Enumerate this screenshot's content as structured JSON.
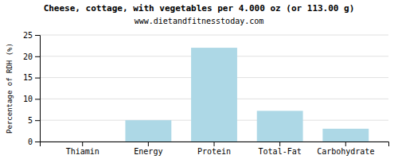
{
  "chart_data": {
    "type": "bar",
    "title": "Cheese, cottage, with vegetables per 4.000 oz (or 113.00 g)",
    "subtitle": "www.dietandfitnesstoday.com",
    "categories": [
      "Thiamin",
      "Energy",
      "Protein",
      "Total-Fat",
      "Carbohydrate"
    ],
    "values": [
      0.0,
      5.0,
      22.0,
      7.2,
      3.0
    ],
    "color": "#add8e6",
    "ylabel": "Percentage of RDH (%)",
    "ylim": [
      0,
      25
    ],
    "yticks": [
      0,
      5,
      10,
      15,
      20,
      25
    ],
    "grid": true
  }
}
